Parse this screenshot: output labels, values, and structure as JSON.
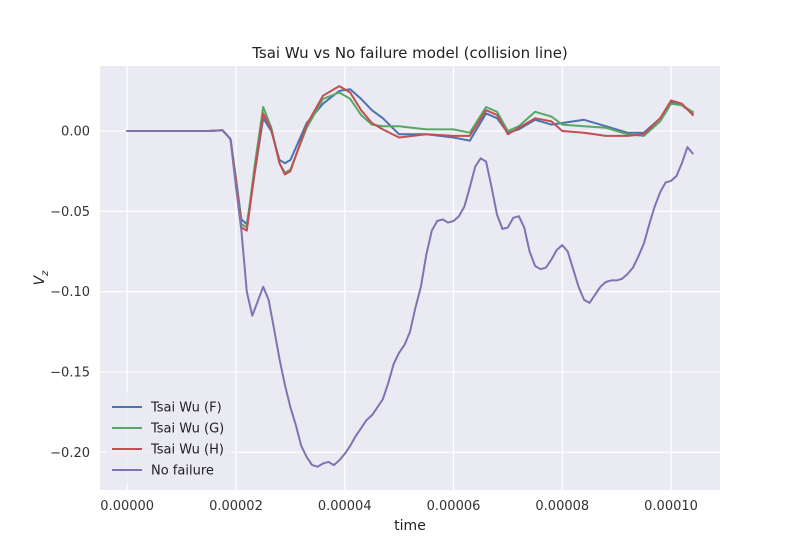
{
  "chart_data": {
    "type": "line",
    "title": "Tsai Wu vs No failure model (collision line)",
    "xlabel": "time",
    "ylabel": "V",
    "ylabel_subscript": "z",
    "xlim": [
      -5e-06,
      0.000109
    ],
    "ylim": [
      -0.2235,
      0.0405
    ],
    "xticks": [
      0,
      2e-05,
      4e-05,
      6e-05,
      8e-05,
      0.0001
    ],
    "xtick_labels": [
      "0.00000",
      "0.00002",
      "0.00004",
      "0.00006",
      "0.00008",
      "0.00010"
    ],
    "yticks": [
      0.0,
      -0.05,
      -0.1,
      -0.15,
      -0.2
    ],
    "ytick_labels": [
      "0.00",
      "−0.05",
      "−0.10",
      "−0.15",
      "−0.20"
    ],
    "grid": true,
    "legend_position": "lower-left",
    "background": "#eaeaf2",
    "series": [
      {
        "name": "Tsai Wu (F)",
        "color": "#4c72b0",
        "x": [
          0,
          1e-05,
          1.5e-05,
          1.75e-05,
          1.9e-05,
          2e-05,
          2.1e-05,
          2.2e-05,
          2.35e-05,
          2.5e-05,
          2.65e-05,
          2.8e-05,
          2.9e-05,
          3e-05,
          3.3e-05,
          3.6e-05,
          3.9e-05,
          4.1e-05,
          4.3e-05,
          4.5e-05,
          4.7e-05,
          5e-05,
          5.5e-05,
          6e-05,
          6.3e-05,
          6.6e-05,
          6.8e-05,
          7e-05,
          7.2e-05,
          7.5e-05,
          7.8e-05,
          8e-05,
          8.4e-05,
          8.8e-05,
          9.2e-05,
          9.5e-05,
          9.8e-05,
          0.0001,
          0.000102,
          0.000104
        ],
        "y": [
          0,
          0,
          0,
          0.0005,
          -0.005,
          -0.03,
          -0.055,
          -0.058,
          -0.025,
          0.008,
          0,
          -0.018,
          -0.02,
          -0.018,
          0.005,
          0.017,
          0.025,
          0.026,
          0.02,
          0.013,
          0.008,
          -0.002,
          -0.002,
          -0.004,
          -0.006,
          0.011,
          0.008,
          -0.001,
          0.001,
          0.007,
          0.004,
          0.005,
          0.007,
          0.003,
          -0.001,
          -0.001,
          0.008,
          0.018,
          0.016,
          0.011
        ]
      },
      {
        "name": "Tsai Wu (G)",
        "color": "#55a868",
        "x": [
          0,
          1e-05,
          1.5e-05,
          1.75e-05,
          1.9e-05,
          2e-05,
          2.1e-05,
          2.2e-05,
          2.35e-05,
          2.5e-05,
          2.65e-05,
          2.8e-05,
          2.9e-05,
          3e-05,
          3.3e-05,
          3.6e-05,
          3.9e-05,
          4.1e-05,
          4.3e-05,
          4.5e-05,
          4.7e-05,
          5e-05,
          5.5e-05,
          6e-05,
          6.3e-05,
          6.6e-05,
          6.8e-05,
          7e-05,
          7.2e-05,
          7.5e-05,
          7.8e-05,
          8e-05,
          8.4e-05,
          8.8e-05,
          9.2e-05,
          9.5e-05,
          9.8e-05,
          0.0001,
          0.000102,
          0.000104
        ],
        "y": [
          0,
          0,
          0,
          0.0005,
          -0.005,
          -0.03,
          -0.058,
          -0.06,
          -0.02,
          0.015,
          0.002,
          -0.02,
          -0.026,
          -0.024,
          0.002,
          0.02,
          0.024,
          0.02,
          0.01,
          0.004,
          0.003,
          0.003,
          0.001,
          0.001,
          -0.001,
          0.015,
          0.012,
          0,
          0.003,
          0.012,
          0.009,
          0.004,
          0.003,
          0.002,
          -0.002,
          -0.003,
          0.006,
          0.017,
          0.016,
          0.012
        ]
      },
      {
        "name": "Tsai Wu (H)",
        "color": "#c44e52",
        "x": [
          0,
          1e-05,
          1.5e-05,
          1.75e-05,
          1.9e-05,
          2e-05,
          2.1e-05,
          2.2e-05,
          2.35e-05,
          2.5e-05,
          2.65e-05,
          2.8e-05,
          2.9e-05,
          3e-05,
          3.3e-05,
          3.6e-05,
          3.9e-05,
          4.1e-05,
          4.3e-05,
          4.5e-05,
          4.7e-05,
          5e-05,
          5.5e-05,
          6e-05,
          6.3e-05,
          6.6e-05,
          6.8e-05,
          7e-05,
          7.2e-05,
          7.5e-05,
          7.8e-05,
          8e-05,
          8.4e-05,
          8.8e-05,
          9.2e-05,
          9.5e-05,
          9.8e-05,
          0.0001,
          0.000102,
          0.000104
        ],
        "y": [
          0,
          0,
          0,
          0.0005,
          -0.005,
          -0.031,
          -0.06,
          -0.062,
          -0.024,
          0.011,
          0.001,
          -0.02,
          -0.027,
          -0.025,
          0.004,
          0.022,
          0.028,
          0.024,
          0.013,
          0.005,
          0.001,
          -0.004,
          -0.002,
          -0.003,
          -0.003,
          0.013,
          0.01,
          -0.002,
          0.002,
          0.008,
          0.006,
          0,
          -0.001,
          -0.003,
          -0.003,
          -0.002,
          0.008,
          0.019,
          0.017,
          0.01
        ]
      },
      {
        "name": "No failure",
        "color": "#8172b2",
        "x": [
          0,
          1e-05,
          1.5e-05,
          1.75e-05,
          1.9e-05,
          2e-05,
          2.1e-05,
          2.2e-05,
          2.3e-05,
          2.4e-05,
          2.5e-05,
          2.6e-05,
          2.7e-05,
          2.8e-05,
          2.9e-05,
          3e-05,
          3.1e-05,
          3.2e-05,
          3.3e-05,
          3.4e-05,
          3.5e-05,
          3.6e-05,
          3.7e-05,
          3.8e-05,
          3.9e-05,
          4e-05,
          4.1e-05,
          4.2e-05,
          4.3e-05,
          4.4e-05,
          4.5e-05,
          4.6e-05,
          4.7e-05,
          4.8e-05,
          4.9e-05,
          5e-05,
          5.1e-05,
          5.2e-05,
          5.3e-05,
          5.4e-05,
          5.5e-05,
          5.6e-05,
          5.7e-05,
          5.8e-05,
          5.9e-05,
          6e-05,
          6.1e-05,
          6.2e-05,
          6.3e-05,
          6.4e-05,
          6.5e-05,
          6.6e-05,
          6.7e-05,
          6.8e-05,
          6.9e-05,
          7e-05,
          7.1e-05,
          7.2e-05,
          7.3e-05,
          7.4e-05,
          7.5e-05,
          7.6e-05,
          7.7e-05,
          7.8e-05,
          7.9e-05,
          8e-05,
          8.1e-05,
          8.2e-05,
          8.3e-05,
          8.4e-05,
          8.5e-05,
          8.6e-05,
          8.7e-05,
          8.8e-05,
          8.9e-05,
          9e-05,
          9.1e-05,
          9.2e-05,
          9.3e-05,
          9.4e-05,
          9.5e-05,
          9.6e-05,
          9.7e-05,
          9.8e-05,
          9.9e-05,
          0.0001,
          0.000101,
          0.000102,
          0.000103,
          0.000104
        ],
        "y": [
          0,
          0,
          0,
          0.0005,
          -0.005,
          -0.035,
          -0.062,
          -0.1,
          -0.115,
          -0.106,
          -0.097,
          -0.105,
          -0.123,
          -0.142,
          -0.158,
          -0.172,
          -0.183,
          -0.196,
          -0.203,
          -0.208,
          -0.209,
          -0.207,
          -0.206,
          -0.208,
          -0.205,
          -0.201,
          -0.196,
          -0.19,
          -0.185,
          -0.18,
          -0.177,
          -0.172,
          -0.167,
          -0.157,
          -0.145,
          -0.138,
          -0.133,
          -0.125,
          -0.11,
          -0.097,
          -0.077,
          -0.062,
          -0.056,
          -0.055,
          -0.057,
          -0.056,
          -0.053,
          -0.047,
          -0.035,
          -0.022,
          -0.017,
          -0.019,
          -0.035,
          -0.052,
          -0.061,
          -0.06,
          -0.054,
          -0.053,
          -0.06,
          -0.075,
          -0.084,
          -0.086,
          -0.085,
          -0.08,
          -0.074,
          -0.071,
          -0.075,
          -0.086,
          -0.097,
          -0.105,
          -0.107,
          -0.102,
          -0.097,
          -0.094,
          -0.093,
          -0.093,
          -0.092,
          -0.089,
          -0.085,
          -0.078,
          -0.07,
          -0.058,
          -0.047,
          -0.038,
          -0.032,
          -0.031,
          -0.028,
          -0.02,
          -0.01,
          -0.014
        ]
      }
    ]
  }
}
